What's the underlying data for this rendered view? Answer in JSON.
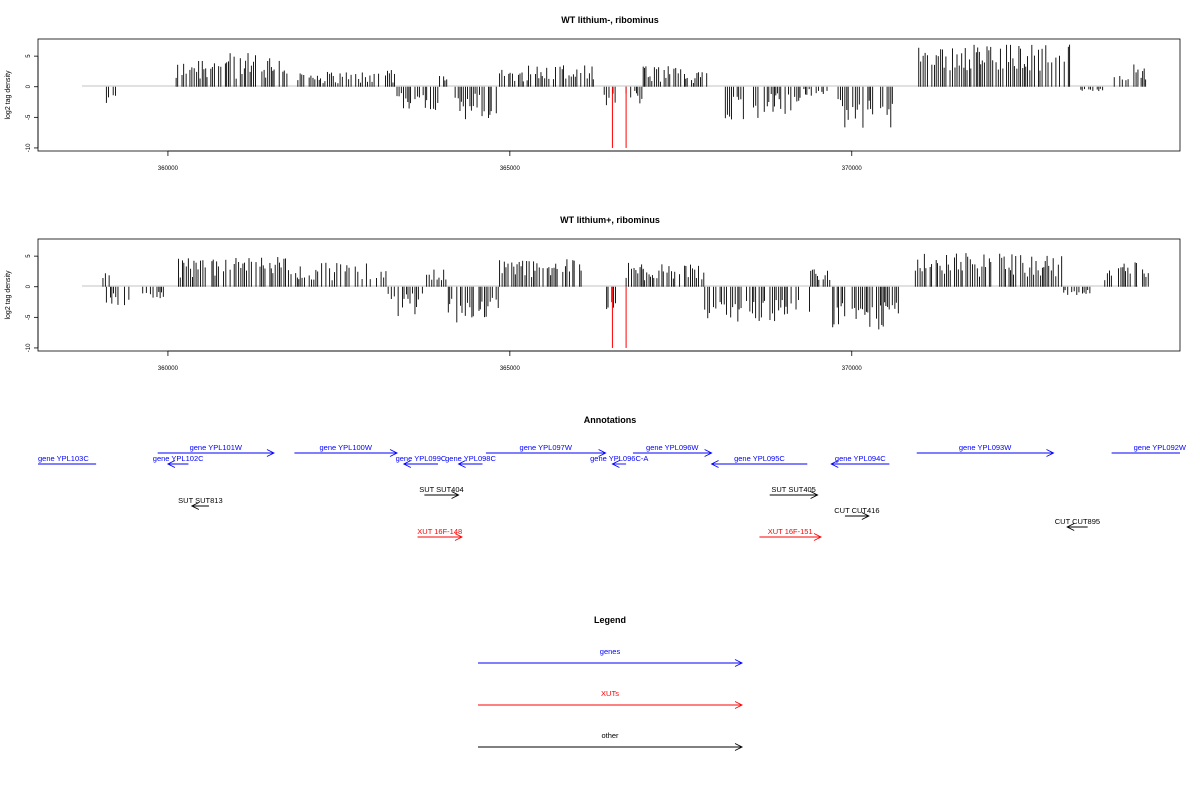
{
  "colors": {
    "gene": "#0000ff",
    "xut": "#ff0000",
    "other": "#000000",
    "highlight": "#ff0000",
    "bar": "#000000"
  },
  "chart_data": [
    {
      "type": "bar",
      "title": "WT lithium-, ribominus",
      "xlabel": "",
      "ylabel": "log2 tag density",
      "xlim": [
        358100,
        374800
      ],
      "ylim": [
        -10.5,
        7.8
      ],
      "xticks": [
        360000,
        365000,
        370000
      ],
      "xtick_labels": [
        "360000",
        "365000",
        "370000"
      ],
      "yticks": [
        -10,
        -5,
        0,
        5
      ],
      "ytick_labels": [
        "-10",
        "-5",
        "0",
        "5"
      ],
      "highlight_bars": [
        {
          "x": 366500,
          "y": -10
        },
        {
          "x": 366700,
          "y": -10
        }
      ],
      "segments": [
        {
          "start": 359100,
          "end": 359250,
          "ymin": -3.5,
          "ymax": -1
        },
        {
          "start": 360120,
          "end": 360300,
          "ymin": 0.5,
          "ymax": 4
        },
        {
          "start": 360300,
          "end": 361750,
          "ymin": 0.8,
          "ymax": 5.5
        },
        {
          "start": 361900,
          "end": 363100,
          "ymin": 0.5,
          "ymax": 2.5
        },
        {
          "start": 363150,
          "end": 363350,
          "ymin": 0.5,
          "ymax": 3.5
        },
        {
          "start": 363350,
          "end": 363950,
          "ymin": -4,
          "ymax": -1
        },
        {
          "start": 363950,
          "end": 364150,
          "ymin": 0.5,
          "ymax": 2
        },
        {
          "start": 364200,
          "end": 364850,
          "ymin": -5.5,
          "ymax": -1
        },
        {
          "start": 364850,
          "end": 366250,
          "ymin": 0.8,
          "ymax": 3.5
        },
        {
          "start": 366380,
          "end": 366550,
          "ymin": -4,
          "ymax": -1
        },
        {
          "start": 366700,
          "end": 366950,
          "ymin": -3,
          "ymax": -0.5
        },
        {
          "start": 366950,
          "end": 367900,
          "ymin": 0.5,
          "ymax": 3.5
        },
        {
          "start": 368000,
          "end": 369250,
          "ymin": -5.5,
          "ymax": -1
        },
        {
          "start": 369300,
          "end": 369650,
          "ymin": -1.5,
          "ymax": -0.3
        },
        {
          "start": 369800,
          "end": 370650,
          "ymin": -7,
          "ymax": -2
        },
        {
          "start": 370950,
          "end": 373200,
          "ymin": 2.5,
          "ymax": 7
        },
        {
          "start": 373350,
          "end": 373700,
          "ymin": -0.8,
          "ymax": -0.3
        },
        {
          "start": 373800,
          "end": 374300,
          "ymin": 1,
          "ymax": 4
        }
      ]
    },
    {
      "type": "bar",
      "title": "WT lithium+, ribominus",
      "xlabel": "",
      "ylabel": "log2 tag density",
      "xlim": [
        358100,
        374800
      ],
      "ylim": [
        -10.5,
        7.8
      ],
      "xticks": [
        360000,
        365000,
        370000
      ],
      "xtick_labels": [
        "360000",
        "365000",
        "370000"
      ],
      "yticks": [
        -10,
        -5,
        0,
        5
      ],
      "ytick_labels": [
        "-10",
        "-5",
        "0",
        "5"
      ],
      "highlight_bars": [
        {
          "x": 366500,
          "y": -10
        },
        {
          "x": 366700,
          "y": -10
        }
      ],
      "segments": [
        {
          "start": 359050,
          "end": 359150,
          "ymin": 1,
          "ymax": 2.5
        },
        {
          "start": 359100,
          "end": 359450,
          "ymin": -4,
          "ymax": -1
        },
        {
          "start": 359600,
          "end": 359950,
          "ymin": -2,
          "ymax": -0.5
        },
        {
          "start": 360120,
          "end": 361800,
          "ymin": 1.5,
          "ymax": 5
        },
        {
          "start": 361800,
          "end": 363200,
          "ymin": 1,
          "ymax": 4
        },
        {
          "start": 363200,
          "end": 363750,
          "ymin": -5,
          "ymax": -1
        },
        {
          "start": 363750,
          "end": 364100,
          "ymin": 1,
          "ymax": 4
        },
        {
          "start": 364100,
          "end": 364850,
          "ymin": -6,
          "ymax": -1.5
        },
        {
          "start": 364850,
          "end": 366100,
          "ymin": 1.5,
          "ymax": 4.5
        },
        {
          "start": 366380,
          "end": 366550,
          "ymin": -4,
          "ymax": -1
        },
        {
          "start": 366700,
          "end": 366950,
          "ymin": 1,
          "ymax": 4
        },
        {
          "start": 366950,
          "end": 367850,
          "ymin": 1,
          "ymax": 4
        },
        {
          "start": 367850,
          "end": 369400,
          "ymin": -6,
          "ymax": -2
        },
        {
          "start": 369400,
          "end": 369700,
          "ymin": 1,
          "ymax": 3
        },
        {
          "start": 369700,
          "end": 370700,
          "ymin": -7,
          "ymax": -2.5
        },
        {
          "start": 370900,
          "end": 373100,
          "ymin": 1.5,
          "ymax": 5.5
        },
        {
          "start": 373100,
          "end": 373500,
          "ymin": -1.5,
          "ymax": -0.5
        },
        {
          "start": 373700,
          "end": 374350,
          "ymin": 1,
          "ymax": 4
        }
      ]
    }
  ],
  "annotations": {
    "title": "Annotations",
    "features": [
      {
        "label": "gene YPL103C",
        "type": "gene",
        "strand": "-",
        "start": 357950,
        "end": 358950,
        "row": 1
      },
      {
        "label": "gene YPL102C",
        "type": "gene",
        "strand": "-",
        "start": 360000,
        "end": 360300,
        "row": 1
      },
      {
        "label": "gene YPL101W",
        "type": "gene",
        "strand": "+",
        "start": 359850,
        "end": 361550,
        "row": 0
      },
      {
        "label": "gene YPL100W",
        "type": "gene",
        "strand": "+",
        "start": 361850,
        "end": 363350,
        "row": 0
      },
      {
        "label": "gene YPL099C",
        "type": "gene",
        "strand": "-",
        "start": 363450,
        "end": 363950,
        "row": 1
      },
      {
        "label": "gene YPL098C",
        "type": "gene",
        "strand": "-",
        "start": 364250,
        "end": 364600,
        "row": 1
      },
      {
        "label": "gene YPL097W",
        "type": "gene",
        "strand": "+",
        "start": 364650,
        "end": 366400,
        "row": 0
      },
      {
        "label": "gene YPL096C-A",
        "type": "gene",
        "strand": "-",
        "start": 366500,
        "end": 366700,
        "row": 1
      },
      {
        "label": "gene YPL096W",
        "type": "gene",
        "strand": "+",
        "start": 366800,
        "end": 367950,
        "row": 0
      },
      {
        "label": "gene YPL095C",
        "type": "gene",
        "strand": "-",
        "start": 367950,
        "end": 369350,
        "row": 1
      },
      {
        "label": "gene YPL094C",
        "type": "gene",
        "strand": "-",
        "start": 369700,
        "end": 370550,
        "row": 1
      },
      {
        "label": "gene YPL093W",
        "type": "gene",
        "strand": "+",
        "start": 370950,
        "end": 372950,
        "row": 0
      },
      {
        "label": "gene YPL092W",
        "type": "gene",
        "strand": "+",
        "start": 373800,
        "end": 375200,
        "row": 0
      },
      {
        "label": "SUT SUT813",
        "type": "other",
        "strand": "-",
        "start": 360350,
        "end": 360600,
        "row": 3
      },
      {
        "label": "SUT SUT404",
        "type": "other",
        "strand": "+",
        "start": 363750,
        "end": 364250,
        "row": 2
      },
      {
        "label": "SUT SUT405",
        "type": "other",
        "strand": "+",
        "start": 368800,
        "end": 369500,
        "row": 2
      },
      {
        "label": "CUT CUT416",
        "type": "other",
        "strand": "+",
        "start": 369900,
        "end": 370250,
        "row": 4
      },
      {
        "label": "CUT CUT895",
        "type": "other",
        "strand": "-",
        "start": 373150,
        "end": 373450,
        "row": 5
      },
      {
        "label": "XUT 16F-148",
        "type": "xut",
        "strand": "+",
        "start": 363650,
        "end": 364300,
        "row": 6
      },
      {
        "label": "XUT 16F-151",
        "type": "xut",
        "strand": "+",
        "start": 368650,
        "end": 369550,
        "row": 6
      }
    ]
  },
  "legend": {
    "title": "Legend",
    "items": [
      {
        "label": "genes",
        "type": "gene"
      },
      {
        "label": "XUTs",
        "type": "xut"
      },
      {
        "label": "other",
        "type": "other"
      }
    ]
  }
}
